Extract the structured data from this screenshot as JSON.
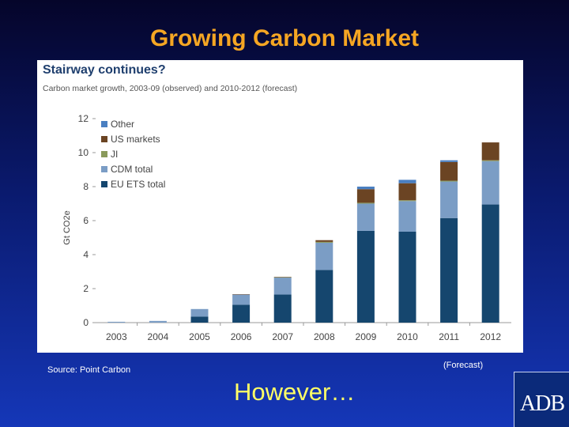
{
  "slide": {
    "title": "Growing Carbon Market",
    "source": "Source: Point Carbon",
    "forecast_note": "(Forecast)",
    "bottom_text": "However…",
    "logo_text": "ADB"
  },
  "colors": {
    "title": "#f5a623",
    "bottom_text": "#ffff66",
    "eu_ets": "#15466e",
    "cdm": "#7b9dc5",
    "ji": "#8a9a5b",
    "us": "#6b4423",
    "other": "#4a7fc1"
  },
  "chart_data": {
    "type": "bar",
    "stacked": true,
    "title": "Stairway continues?",
    "subtitle": "Carbon market growth, 2003-09 (observed) and 2010-2012 (forecast)",
    "ylabel": "Gt CO2e",
    "xlabel": "",
    "ylim": [
      0,
      12
    ],
    "yticks": [
      0,
      2,
      4,
      6,
      8,
      10,
      12
    ],
    "grid": false,
    "legend_position": "top-left",
    "categories": [
      "2003",
      "2004",
      "2005",
      "2006",
      "2007",
      "2008",
      "2009",
      "2010",
      "2011",
      "2012"
    ],
    "series": [
      {
        "name": "EU ETS total",
        "color": "#15466e",
        "values": [
          0,
          0,
          0.35,
          1.05,
          1.65,
          3.1,
          5.4,
          5.35,
          6.15,
          6.95
        ]
      },
      {
        "name": "CDM total",
        "color": "#7b9dc5",
        "values": [
          0.05,
          0.1,
          0.45,
          0.6,
          1.0,
          1.6,
          1.6,
          1.8,
          2.15,
          2.55
        ]
      },
      {
        "name": "JI",
        "color": "#8a9a5b",
        "values": [
          0,
          0,
          0,
          0,
          0.02,
          0.05,
          0.05,
          0.05,
          0.05,
          0.05
        ]
      },
      {
        "name": "US markets",
        "color": "#6b4423",
        "values": [
          0,
          0,
          0,
          0.02,
          0.02,
          0.1,
          0.8,
          1.0,
          1.1,
          1.05
        ]
      },
      {
        "name": "Other",
        "color": "#4a7fc1",
        "values": [
          0,
          0,
          0,
          0,
          0,
          0,
          0.15,
          0.2,
          0.1,
          0
        ]
      }
    ]
  }
}
